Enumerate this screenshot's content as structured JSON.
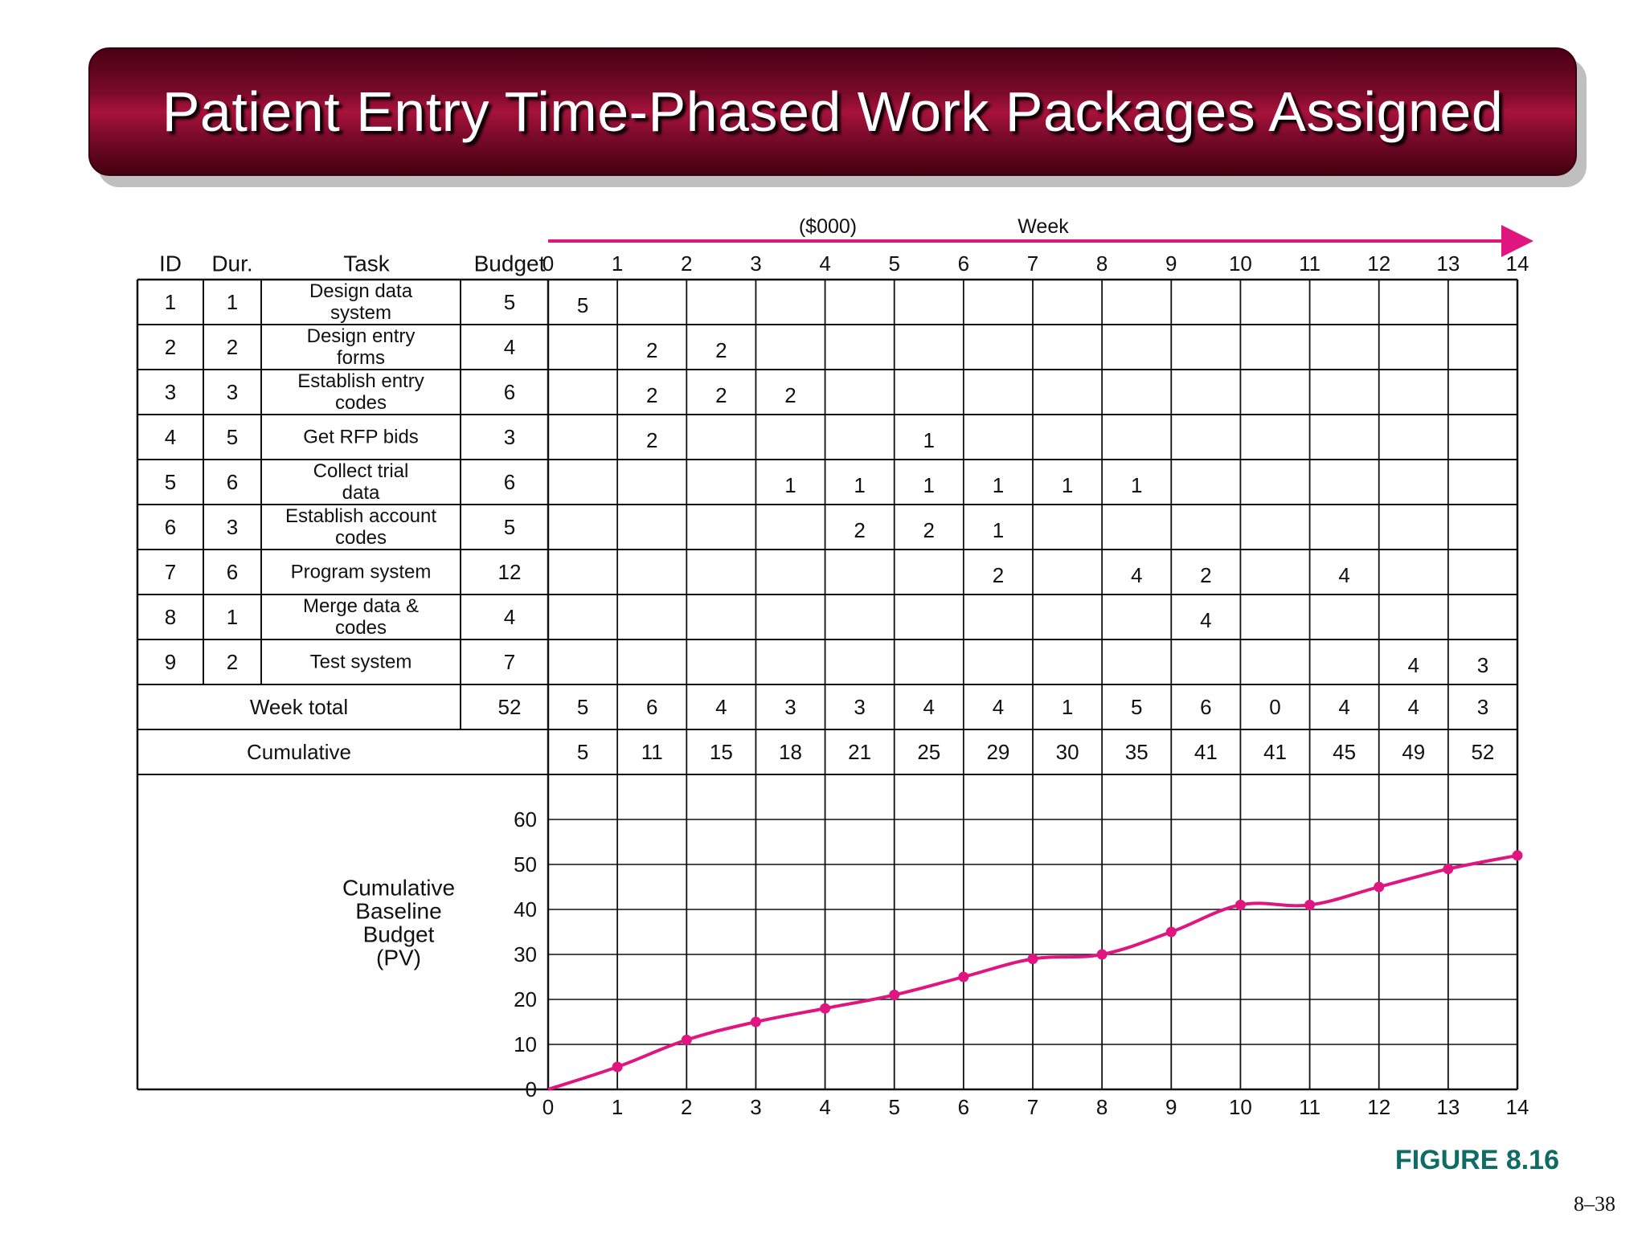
{
  "title": "Patient Entry Time-Phased Work Packages Assigned",
  "figure_label": "FIGURE 8.16",
  "page_number": "8–38",
  "colors": {
    "accent": "#e0157f",
    "title_bg": "#7a0a2a",
    "figure_label": "#0f6b66"
  },
  "header": {
    "units": "($000)",
    "week": "Week"
  },
  "columns": {
    "id": "ID",
    "dur": "Dur.",
    "task": "Task",
    "budget": "Budget"
  },
  "weeks": [
    0,
    1,
    2,
    3,
    4,
    5,
    6,
    7,
    8,
    9,
    10,
    11,
    12,
    13,
    14
  ],
  "tasks": [
    {
      "id": "1",
      "dur": "1",
      "task": [
        "Design data",
        "system"
      ],
      "budget": "5",
      "cells": [
        {
          "col": 0,
          "value": "5"
        }
      ]
    },
    {
      "id": "2",
      "dur": "2",
      "task": [
        "Design entry",
        "forms"
      ],
      "budget": "4",
      "cells": [
        {
          "col": 1,
          "value": "2"
        },
        {
          "col": 2,
          "value": "2"
        }
      ]
    },
    {
      "id": "3",
      "dur": "3",
      "task": [
        "Establish entry",
        "codes"
      ],
      "budget": "6",
      "cells": [
        {
          "col": 1,
          "value": "2"
        },
        {
          "col": 2,
          "value": "2"
        },
        {
          "col": 3,
          "value": "2"
        }
      ]
    },
    {
      "id": "4",
      "dur": "5",
      "task": [
        "Get RFP bids"
      ],
      "budget": "3",
      "cells": [
        {
          "col": 1,
          "value": "2"
        },
        {
          "col": 5,
          "value": "1"
        }
      ]
    },
    {
      "id": "5",
      "dur": "6",
      "task": [
        "Collect trial",
        "data"
      ],
      "budget": "6",
      "cells": [
        {
          "col": 3,
          "value": "1"
        },
        {
          "col": 4,
          "value": "1"
        },
        {
          "col": 5,
          "value": "1"
        },
        {
          "col": 6,
          "value": "1"
        },
        {
          "col": 7,
          "value": "1"
        },
        {
          "col": 8,
          "value": "1"
        }
      ]
    },
    {
      "id": "6",
      "dur": "3",
      "task": [
        "Establish account",
        "codes"
      ],
      "budget": "5",
      "cells": [
        {
          "col": 4,
          "value": "2"
        },
        {
          "col": 5,
          "value": "2"
        },
        {
          "col": 6,
          "value": "1"
        }
      ]
    },
    {
      "id": "7",
      "dur": "6",
      "task": [
        "Program system"
      ],
      "budget": "12",
      "cells": [
        {
          "col": 6,
          "value": "2"
        },
        {
          "col": 8,
          "value": "4"
        },
        {
          "col": 9,
          "value": "2"
        },
        {
          "col": 11,
          "value": "4"
        }
      ]
    },
    {
      "id": "8",
      "dur": "1",
      "task": [
        "Merge data &",
        "codes"
      ],
      "budget": "4",
      "cells": [
        {
          "col": 9,
          "value": "4"
        }
      ]
    },
    {
      "id": "9",
      "dur": "2",
      "task": [
        "Test system"
      ],
      "budget": "7",
      "cells": [
        {
          "col": 12,
          "value": "4"
        },
        {
          "col": 13,
          "value": "3"
        }
      ]
    }
  ],
  "week_total": {
    "label": "Week total",
    "budget": "52",
    "values": [
      "5",
      "6",
      "4",
      "3",
      "3",
      "4",
      "4",
      "1",
      "5",
      "6",
      "0",
      "4",
      "4",
      "3"
    ]
  },
  "cumulative": {
    "label": "Cumulative",
    "values": [
      "5",
      "11",
      "15",
      "18",
      "21",
      "25",
      "29",
      "30",
      "35",
      "41",
      "41",
      "45",
      "49",
      "52"
    ]
  },
  "chart_data": {
    "type": "line",
    "ylabel": [
      "Cumulative",
      "Baseline",
      "Budget",
      "(PV)"
    ],
    "x": [
      0,
      1,
      2,
      3,
      4,
      5,
      6,
      7,
      8,
      9,
      10,
      11,
      12,
      13,
      14
    ],
    "y": [
      0,
      5,
      11,
      15,
      18,
      21,
      25,
      29,
      30,
      35,
      41,
      41,
      45,
      49,
      52
    ],
    "xlim": [
      0,
      14
    ],
    "ylim": [
      0,
      60
    ],
    "yticks": [
      0,
      10,
      20,
      30,
      40,
      50,
      60
    ],
    "grid": true
  }
}
